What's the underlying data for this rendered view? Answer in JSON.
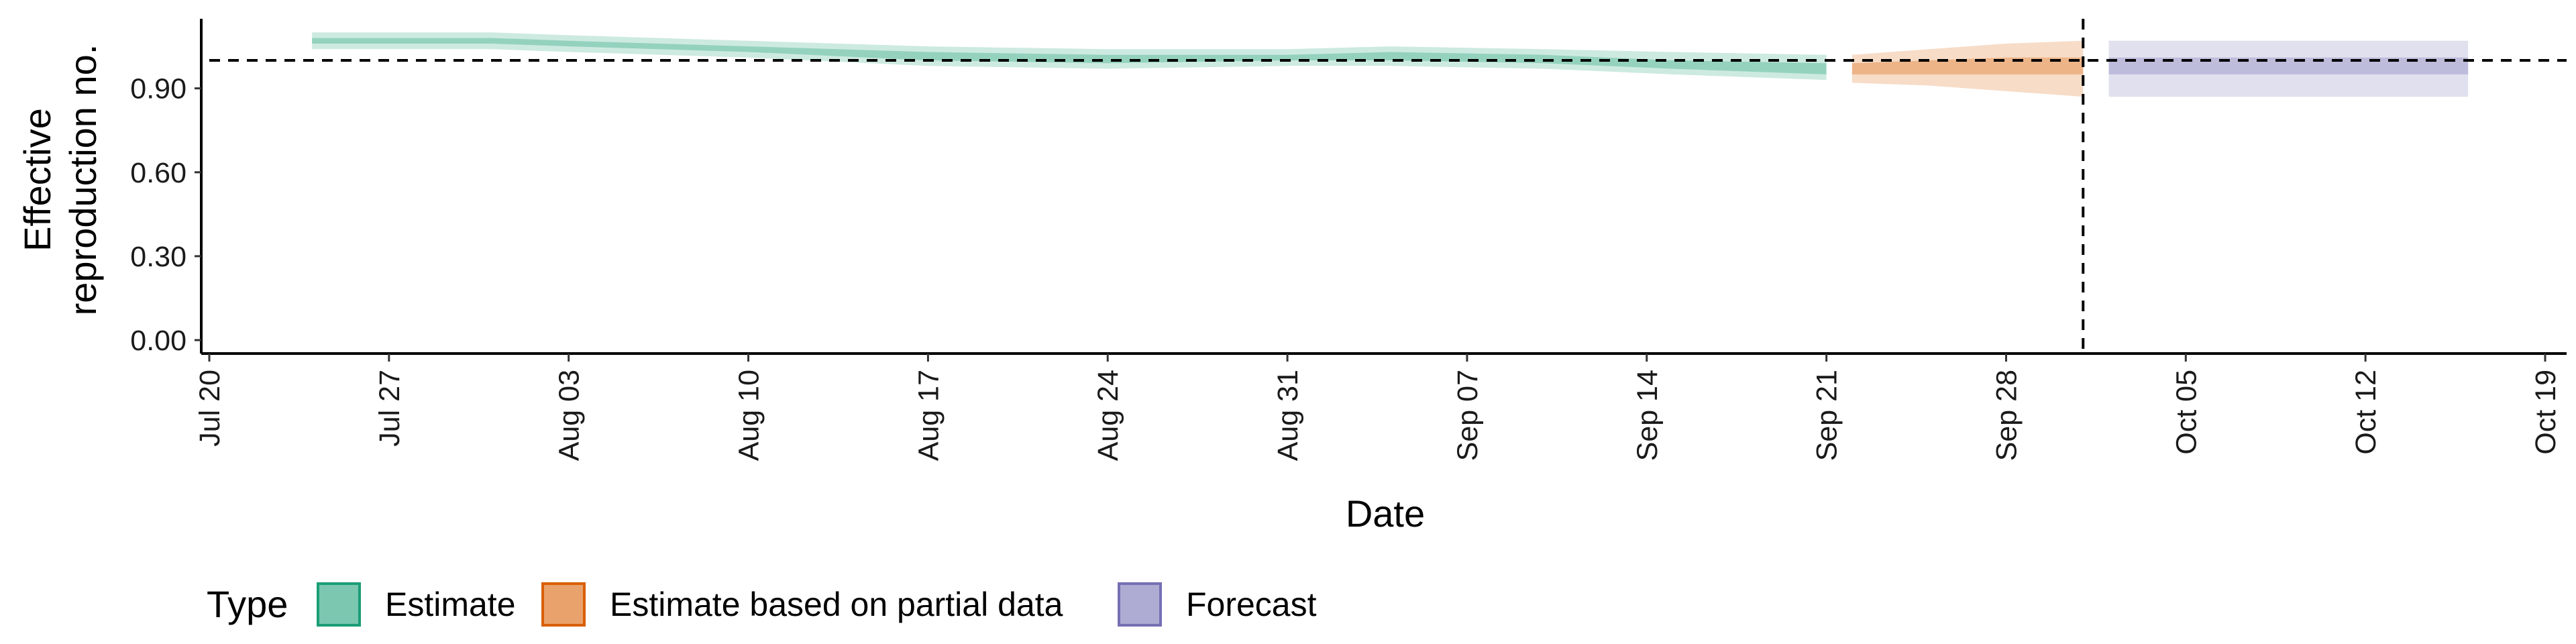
{
  "chart_data": {
    "type": "area",
    "xlabel": "Date",
    "ylabel_lines": [
      "Effective",
      "reproduction no."
    ],
    "x_ticks": [
      "Jul 20",
      "Jul 27",
      "Aug 03",
      "Aug 10",
      "Aug 17",
      "Aug 24",
      "Aug 31",
      "Sep 07",
      "Sep 14",
      "Sep 21",
      "Sep 28",
      "Oct 05",
      "Oct 12",
      "Oct 19"
    ],
    "x_range": [
      "2020-07-20",
      "2020-10-19"
    ],
    "y_ticks": [
      "0.00",
      "0.30",
      "0.60",
      "0.90"
    ],
    "ylim": [
      0,
      1.05
    ],
    "reference_hline": 1.0,
    "reference_vline_date": "2020-10-01",
    "legend": {
      "title": "Type",
      "position": "bottom-left",
      "items": [
        "Estimate",
        "Estimate based on partial data",
        "Forecast"
      ]
    },
    "series": [
      {
        "name": "Estimate",
        "fill": "#1b9e77",
        "stroke": "#1b9e77",
        "points": [
          {
            "date": "2020-07-24",
            "lower_90": 1.04,
            "upper_90": 1.1,
            "lower_50": 1.06,
            "upper_50": 1.08,
            "median": 1.07
          },
          {
            "date": "2020-07-31",
            "lower_90": 1.04,
            "upper_90": 1.1,
            "lower_50": 1.06,
            "upper_50": 1.08,
            "median": 1.07
          },
          {
            "date": "2020-08-03",
            "lower_90": 1.03,
            "upper_90": 1.09,
            "lower_50": 1.05,
            "upper_50": 1.07,
            "median": 1.06
          },
          {
            "date": "2020-08-10",
            "lower_90": 1.01,
            "upper_90": 1.07,
            "lower_50": 1.03,
            "upper_50": 1.05,
            "median": 1.04
          },
          {
            "date": "2020-08-17",
            "lower_90": 0.98,
            "upper_90": 1.05,
            "lower_50": 1.0,
            "upper_50": 1.03,
            "median": 1.01
          },
          {
            "date": "2020-08-24",
            "lower_90": 0.97,
            "upper_90": 1.04,
            "lower_50": 0.99,
            "upper_50": 1.02,
            "median": 1.0
          },
          {
            "date": "2020-08-31",
            "lower_90": 0.98,
            "upper_90": 1.04,
            "lower_50": 1.0,
            "upper_50": 1.02,
            "median": 1.01
          },
          {
            "date": "2020-09-04",
            "lower_90": 0.98,
            "upper_90": 1.05,
            "lower_50": 1.0,
            "upper_50": 1.03,
            "median": 1.01
          },
          {
            "date": "2020-09-10",
            "lower_90": 0.97,
            "upper_90": 1.04,
            "lower_50": 0.99,
            "upper_50": 1.02,
            "median": 1.0
          },
          {
            "date": "2020-09-15",
            "lower_90": 0.95,
            "upper_90": 1.03,
            "lower_50": 0.97,
            "upper_50": 1.0,
            "median": 0.98
          },
          {
            "date": "2020-09-21",
            "lower_90": 0.93,
            "upper_90": 1.02,
            "lower_50": 0.95,
            "upper_50": 0.99,
            "median": 0.97
          }
        ]
      },
      {
        "name": "Estimate based on partial data",
        "fill": "#d95f02",
        "stroke": "#d95f02",
        "points": [
          {
            "date": "2020-09-22",
            "lower_90": 0.92,
            "upper_90": 1.02,
            "lower_50": 0.95,
            "upper_50": 0.99,
            "median": 0.97
          },
          {
            "date": "2020-09-25",
            "lower_90": 0.91,
            "upper_90": 1.04,
            "lower_50": 0.95,
            "upper_50": 1.0,
            "median": 0.98
          },
          {
            "date": "2020-09-28",
            "lower_90": 0.89,
            "upper_90": 1.06,
            "lower_50": 0.95,
            "upper_50": 1.01,
            "median": 0.98
          },
          {
            "date": "2020-10-01",
            "lower_90": 0.87,
            "upper_90": 1.07,
            "lower_50": 0.95,
            "upper_50": 1.01,
            "median": 0.98
          }
        ]
      },
      {
        "name": "Forecast",
        "fill": "#7570b3",
        "stroke": "#7570b3",
        "points": [
          {
            "date": "2020-10-02",
            "lower_90": 0.87,
            "upper_90": 1.07,
            "lower_50": 0.95,
            "upper_50": 1.01,
            "median": 0.98
          },
          {
            "date": "2020-10-16",
            "lower_90": 0.87,
            "upper_90": 1.07,
            "lower_50": 0.95,
            "upper_50": 1.01,
            "median": 0.98
          }
        ]
      }
    ]
  }
}
